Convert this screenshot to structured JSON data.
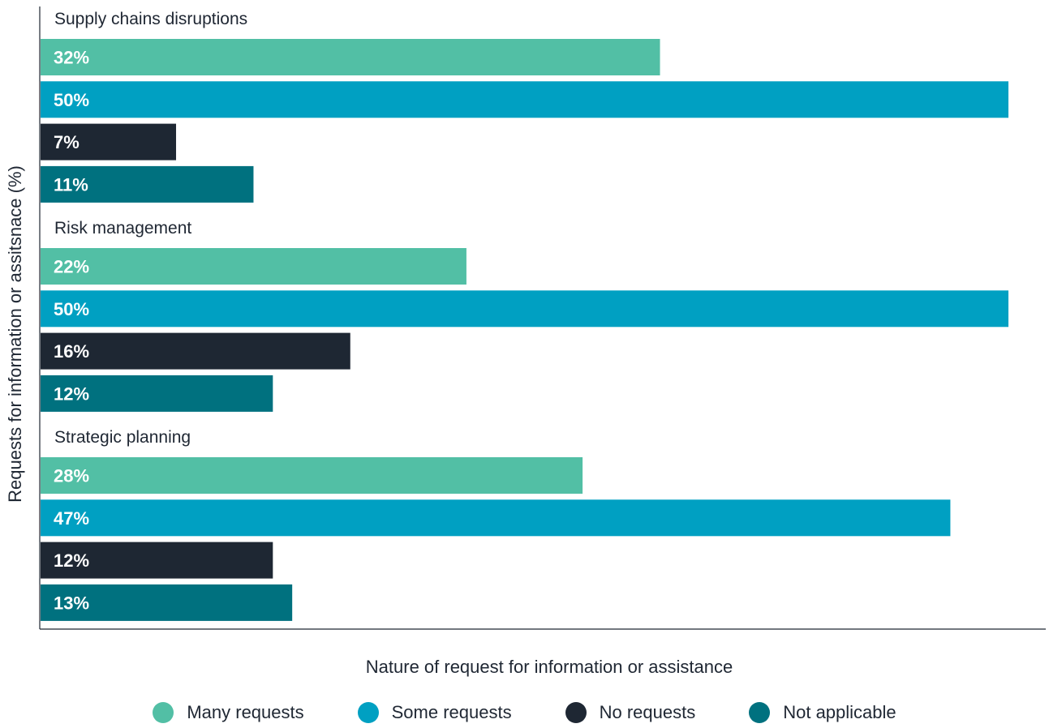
{
  "chart_data": {
    "type": "bar",
    "orientation": "horizontal",
    "xlabel": "Nature of request for information or assistance",
    "ylabel": "Requests for information or assitsnace (%)",
    "xlim": [
      0,
      50
    ],
    "value_suffix": "%",
    "groups": [
      {
        "label": "Supply chains disruptions",
        "values": [
          32,
          50,
          7,
          11
        ]
      },
      {
        "label": "Risk management",
        "values": [
          22,
          50,
          16,
          12
        ]
      },
      {
        "label": "Strategic planning",
        "values": [
          28,
          47,
          12,
          13
        ]
      }
    ],
    "series": [
      {
        "name": "Many requests",
        "color": "#52bfa5"
      },
      {
        "name": "Some requests",
        "color": "#00a0c2"
      },
      {
        "name": "No requests",
        "color": "#1e2733"
      },
      {
        "name": "Not applicable",
        "color": "#00717f"
      }
    ],
    "legend_position": "bottom",
    "grid": false
  }
}
